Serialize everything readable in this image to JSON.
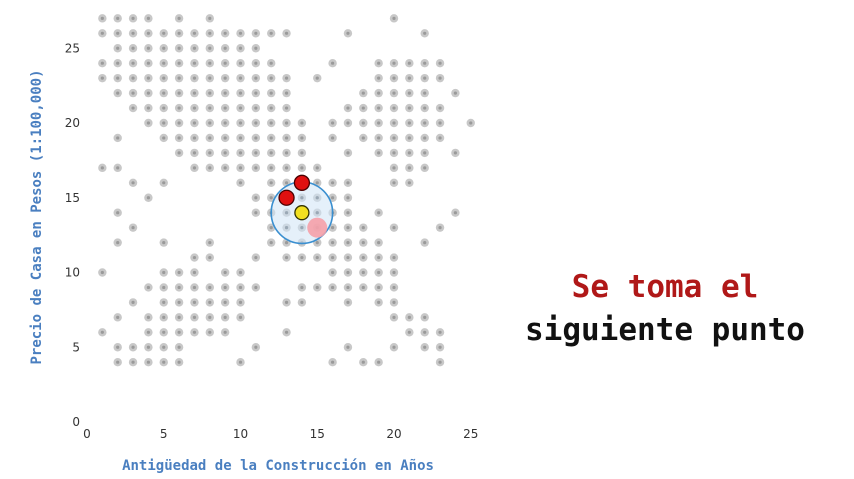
{
  "chart_data": {
    "type": "scatter",
    "xlabel": "Antigüedad de la Construcción en Años",
    "ylabel": "Precio de Casa en Pesos (1:100,000)",
    "xlim": [
      0,
      25
    ],
    "ylim": [
      0,
      25
    ],
    "xticks": [
      0,
      5,
      10,
      15,
      20,
      25
    ],
    "yticks": [
      0,
      5,
      10,
      15,
      20,
      25
    ],
    "grid": false,
    "points_series": {
      "name": "",
      "color": "#c8c8c8",
      "rows": [
        {
          "y": 27,
          "x": [
            1,
            2,
            3,
            4,
            6,
            8,
            20
          ]
        },
        {
          "y": 26,
          "x": [
            1,
            2,
            3,
            4,
            5,
            6,
            7,
            8,
            9,
            10,
            11,
            12,
            13,
            17,
            22
          ]
        },
        {
          "y": 25,
          "x": [
            2,
            3,
            4,
            5,
            6,
            7,
            8,
            9,
            10,
            11
          ]
        },
        {
          "y": 24,
          "x": [
            1,
            2,
            3,
            4,
            5,
            6,
            7,
            8,
            9,
            10,
            11,
            12,
            16,
            19,
            20,
            21,
            22,
            23
          ]
        },
        {
          "y": 23,
          "x": [
            1,
            2,
            3,
            4,
            5,
            6,
            7,
            8,
            9,
            10,
            11,
            12,
            13,
            15,
            19,
            20,
            21,
            22,
            23
          ]
        },
        {
          "y": 22,
          "x": [
            2,
            3,
            4,
            5,
            6,
            7,
            8,
            9,
            10,
            11,
            12,
            13,
            18,
            19,
            20,
            21,
            22,
            24
          ]
        },
        {
          "y": 21,
          "x": [
            3,
            4,
            5,
            6,
            7,
            8,
            9,
            10,
            11,
            12,
            13,
            17,
            18,
            19,
            20,
            21,
            22,
            23
          ]
        },
        {
          "y": 20,
          "x": [
            4,
            5,
            6,
            7,
            8,
            9,
            10,
            11,
            12,
            13,
            14,
            16,
            17,
            18,
            19,
            20,
            21,
            22,
            23,
            25
          ]
        },
        {
          "y": 19,
          "x": [
            2,
            5,
            6,
            7,
            8,
            9,
            10,
            11,
            12,
            13,
            14,
            16,
            18,
            19,
            20,
            21,
            22,
            23
          ]
        },
        {
          "y": 18,
          "x": [
            6,
            7,
            8,
            9,
            10,
            11,
            12,
            13,
            14,
            17,
            19,
            20,
            21,
            22,
            24
          ]
        },
        {
          "y": 17,
          "x": [
            1,
            2,
            7,
            8,
            9,
            10,
            11,
            12,
            13,
            14,
            15,
            20,
            21,
            22
          ]
        },
        {
          "y": 16,
          "x": [
            3,
            5,
            10,
            12,
            13,
            15,
            16,
            17,
            20,
            21
          ]
        },
        {
          "y": 15,
          "x": [
            4,
            11,
            12,
            14,
            15,
            16,
            17
          ]
        },
        {
          "y": 14,
          "x": [
            2,
            11,
            12,
            13,
            15,
            16,
            17,
            19,
            24
          ]
        },
        {
          "y": 13,
          "x": [
            3,
            12,
            13,
            14,
            15,
            16,
            17,
            18,
            20,
            23
          ]
        },
        {
          "y": 12,
          "x": [
            2,
            5,
            8,
            12,
            13,
            14,
            15,
            16,
            17,
            18,
            19,
            22
          ]
        },
        {
          "y": 11,
          "x": [
            7,
            8,
            11,
            13,
            14,
            15,
            16,
            17,
            18,
            19,
            20
          ]
        },
        {
          "y": 10,
          "x": [
            1,
            5,
            6,
            7,
            9,
            10,
            16,
            17,
            18,
            19,
            20
          ]
        },
        {
          "y": 9,
          "x": [
            4,
            5,
            6,
            7,
            8,
            9,
            10,
            11,
            14,
            15,
            16,
            17,
            18,
            19,
            20
          ]
        },
        {
          "y": 8,
          "x": [
            3,
            5,
            6,
            7,
            8,
            9,
            10,
            13,
            14,
            17,
            19,
            20
          ]
        },
        {
          "y": 7,
          "x": [
            2,
            4,
            5,
            6,
            7,
            8,
            9,
            10,
            20,
            21,
            22
          ]
        },
        {
          "y": 6,
          "x": [
            1,
            4,
            5,
            6,
            7,
            8,
            9,
            13,
            21,
            22,
            23
          ]
        },
        {
          "y": 5,
          "x": [
            2,
            3,
            4,
            5,
            6,
            11,
            17,
            20,
            22,
            23
          ]
        },
        {
          "y": 4,
          "x": [
            2,
            3,
            4,
            5,
            6,
            10,
            16,
            18,
            19,
            23
          ]
        }
      ]
    },
    "highlight_circle": {
      "center": [
        14,
        14
      ],
      "radius_data": 2,
      "stroke": "#3a8fd0",
      "fill": "#cfe4f5"
    },
    "query_point": {
      "x": 14,
      "y": 14,
      "color": "#f2e020"
    },
    "neighbors": [
      {
        "x": 13,
        "y": 15,
        "color": "#e01010"
      },
      {
        "x": 14,
        "y": 16,
        "color": "#e01010"
      }
    ],
    "candidate_point": {
      "x": 15,
      "y": 13,
      "color": "#f5a0a8"
    }
  },
  "caption": {
    "line1": "Se toma el",
    "line2": "siguiente punto",
    "line1_color": "#b01818",
    "line2_color": "#111111"
  },
  "colors": {
    "axis_title": "#4a7fc0",
    "tick_text": "#333333"
  }
}
